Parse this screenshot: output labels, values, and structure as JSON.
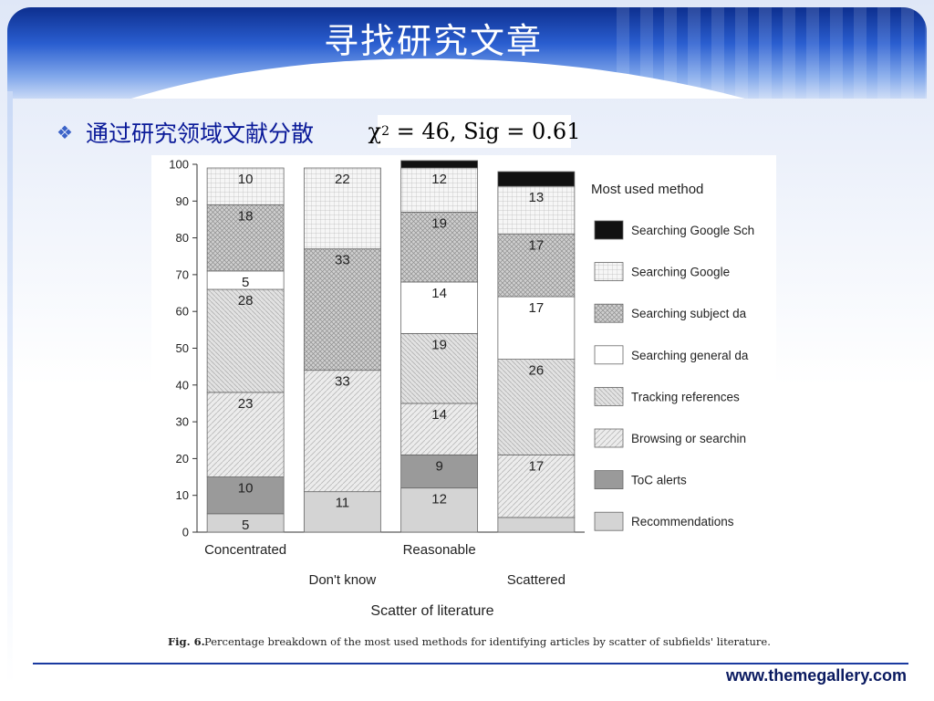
{
  "slide": {
    "title": "寻找研究文章",
    "bullet_text": "通过研究领域文献分散",
    "bullet_icon": "diamond-bullet-icon",
    "formula": {
      "prefix": "χ",
      "exponent": "2",
      "rest": " = 46, Sig = 0.61"
    },
    "footer_url": "www.themegallery.com"
  },
  "chart_data": {
    "type": "bar",
    "stacked": true,
    "title": "",
    "xlabel": "Scatter of literature",
    "ylabel": "",
    "ylim": [
      0,
      100
    ],
    "yticks": [
      0,
      10,
      20,
      30,
      40,
      50,
      60,
      70,
      80,
      90,
      100
    ],
    "categories": [
      "Concentrated",
      "Don't know",
      "Reasonable",
      "Scattered"
    ],
    "legend_title": "Most used method",
    "legend_position": "right",
    "caption_label": "Fig. 6.",
    "caption_text": "Percentage breakdown of the most used methods for identifying articles by scatter of subfields' literature.",
    "series": [
      {
        "name": "Recommendations",
        "values": [
          5,
          11,
          12,
          4
        ],
        "labels": [
          "5",
          "11",
          "12",
          ""
        ],
        "color": "#d4d4d4",
        "pattern": "solid"
      },
      {
        "name": "ToC alerts",
        "values": [
          10,
          0,
          9,
          0
        ],
        "labels": [
          "10",
          "",
          "9",
          ""
        ],
        "color": "#9a9a9a",
        "pattern": "solid"
      },
      {
        "name": "Browsing or searchin",
        "values": [
          23,
          33,
          14,
          17
        ],
        "labels": [
          "23",
          "33",
          "14",
          "17"
        ],
        "color": "#e8e8e8",
        "pattern": "diag"
      },
      {
        "name": "Tracking references",
        "values": [
          28,
          0,
          19,
          26
        ],
        "labels": [
          "28",
          "",
          "19",
          "26"
        ],
        "color": "#dcdcdc",
        "pattern": "diag2"
      },
      {
        "name": "Searching general da",
        "values": [
          5,
          0,
          14,
          17
        ],
        "labels": [
          "5",
          "",
          "14",
          "17"
        ],
        "color": "#ffffff",
        "pattern": "solid"
      },
      {
        "name": "Searching subject da",
        "values": [
          18,
          33,
          19,
          17
        ],
        "labels": [
          "18",
          "33",
          "19",
          "17"
        ],
        "color": "#bdbdbd",
        "pattern": "cross"
      },
      {
        "name": "Searching Google",
        "values": [
          10,
          22,
          12,
          13
        ],
        "labels": [
          "10",
          "22",
          "12",
          "13"
        ],
        "color": "#efefef",
        "pattern": "grid"
      },
      {
        "name": "Searching Google Sch",
        "values": [
          0,
          0,
          2,
          4
        ],
        "labels": [
          "",
          "",
          "",
          ""
        ],
        "color": "#111111",
        "pattern": "solid"
      }
    ]
  }
}
